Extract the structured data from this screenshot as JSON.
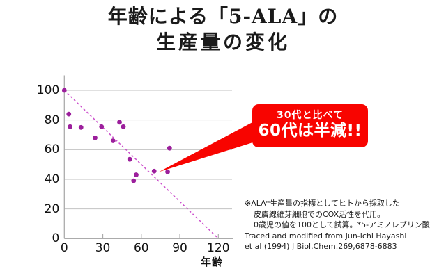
{
  "title": {
    "line1": "年齢による「5-ALA」の",
    "line2": "生産量の変化"
  },
  "chart_data": {
    "type": "scatter",
    "title": "年齢による「5-ALA」の生産量の変化",
    "xlabel": "年齢",
    "ylabel": "",
    "xlim": [
      0,
      131
    ],
    "ylim": [
      0,
      110
    ],
    "x_ticks": [
      0,
      30,
      60,
      90,
      120
    ],
    "y_ticks": [
      0,
      20,
      40,
      60,
      80,
      100
    ],
    "grid": "horizontal",
    "points": [
      [
        0,
        100
      ],
      [
        3.5,
        84
      ],
      [
        4.5,
        75.5
      ],
      [
        13,
        75
      ],
      [
        24,
        68
      ],
      [
        29,
        75.5
      ],
      [
        38,
        66
      ],
      [
        43,
        78.5
      ],
      [
        46,
        75.5
      ],
      [
        51,
        53.5
      ],
      [
        54,
        39
      ],
      [
        56,
        43
      ],
      [
        70,
        45.5
      ],
      [
        80.5,
        45
      ],
      [
        82,
        61
      ]
    ],
    "trendline": {
      "from": [
        0,
        100
      ],
      "to": [
        120,
        0
      ],
      "style": "dashed"
    },
    "callout_target_point": [
      70,
      45.5
    ],
    "colors": {
      "point": "#9c1f9c",
      "trendline": "#cc4fcc",
      "grid": "#c2c2c2",
      "axis": "#ababab",
      "callout_bg": "#f80400",
      "callout_text": "#ffffff",
      "label": "#111111"
    }
  },
  "callout": {
    "line1": "30代と比べて",
    "line2": "60代は半減!!"
  },
  "footnote": {
    "lines": [
      "※ALA*生産量の指標としてヒトから採取した",
      "皮膚線維芽細胞でのCOX活性を代用。",
      "0歳児の値を100として試算。*5-アミノレブリン酸",
      "Traced and modified from Jun-ichi Hayashi",
      "et al (1994) J Biol.Chem.269,6878-6883"
    ]
  }
}
